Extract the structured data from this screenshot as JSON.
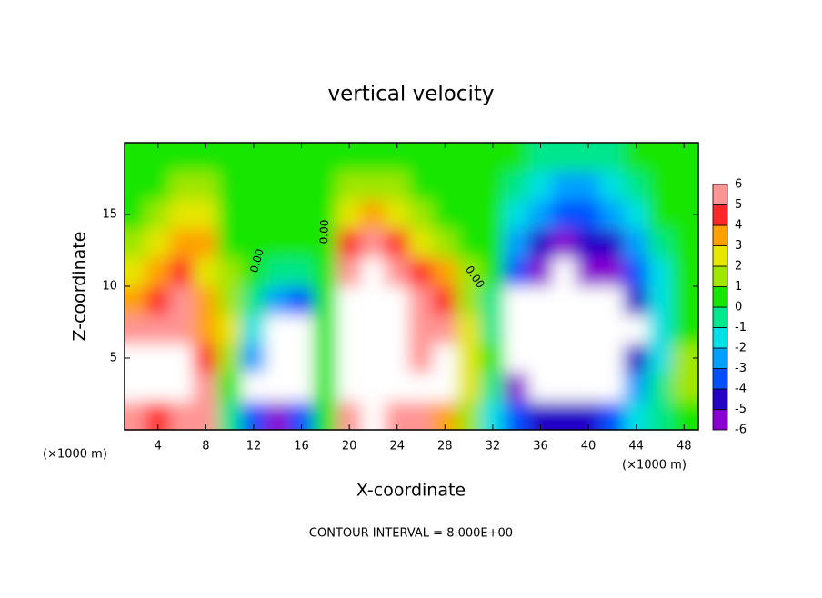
{
  "chart_data": {
    "type": "contour",
    "title": "vertical velocity",
    "x_label": "X-coordinate",
    "y_label": "Z-coordinate",
    "x_unit_label": "(×1000 m)",
    "y_unit_label": "(×1000 m)",
    "footer": "CONTOUR INTERVAL = 8.000E+00",
    "contour_labels": [
      "0.00",
      "0.00",
      "0.00"
    ],
    "xlim": [
      1.2,
      49.2
    ],
    "ylim": [
      0,
      20
    ],
    "xticks": [
      4,
      8,
      12,
      16,
      20,
      24,
      28,
      32,
      36,
      40,
      44,
      48
    ],
    "yticks": [
      5,
      10,
      15
    ],
    "x": [
      2,
      4,
      6,
      8,
      10,
      12,
      14,
      16,
      18,
      20,
      22,
      24,
      26,
      28,
      30,
      32,
      34,
      36,
      38,
      40,
      42,
      44,
      46,
      48
    ],
    "y": [
      1,
      3,
      5,
      7,
      9,
      11,
      13,
      15,
      17,
      19
    ],
    "z": [
      [
        5,
        8,
        8,
        5,
        3,
        2,
        1,
        0,
        0,
        0
      ],
      [
        4,
        8,
        7,
        5,
        4,
        3,
        2,
        1,
        0,
        0
      ],
      [
        5,
        7,
        8,
        6,
        5,
        4,
        3,
        2,
        1,
        0
      ],
      [
        5,
        5,
        4,
        3,
        3,
        2,
        3,
        2,
        1,
        0
      ],
      [
        -1,
        0,
        1,
        2,
        1,
        1,
        0,
        0,
        0,
        0
      ],
      [
        -4,
        -7,
        -3,
        -2,
        -1,
        0,
        0,
        0,
        0,
        0
      ],
      [
        -6,
        -8,
        -8,
        -7,
        -3,
        -1,
        0,
        0,
        0,
        0
      ],
      [
        -4,
        -7,
        -8,
        -8,
        -4,
        -1,
        0,
        0,
        0,
        0
      ],
      [
        0,
        0,
        0,
        0,
        0,
        0,
        0,
        0,
        0,
        0
      ],
      [
        5,
        8,
        8,
        8,
        8,
        6,
        4,
        2,
        1,
        0
      ],
      [
        7,
        10,
        12,
        14,
        13,
        10,
        6,
        3,
        1,
        0
      ],
      [
        6,
        8,
        8,
        8,
        8,
        6,
        4,
        2,
        1,
        0
      ],
      [
        5,
        7,
        6,
        5,
        5,
        4,
        2,
        1,
        0,
        0
      ],
      [
        3,
        7,
        7,
        5,
        4,
        3,
        1,
        0,
        0,
        0
      ],
      [
        1,
        2,
        2,
        2,
        1,
        1,
        0,
        0,
        0,
        0
      ],
      [
        -2,
        -1,
        0,
        -1,
        -1,
        0,
        0,
        0,
        0,
        0
      ],
      [
        -4,
        -6,
        -7,
        -7,
        -7,
        -4,
        -3,
        -2,
        -1,
        0
      ],
      [
        -5,
        -8,
        -9,
        -10,
        -8,
        -6,
        -5,
        -3,
        -2,
        -1
      ],
      [
        -5,
        -9,
        -10,
        -12,
        -10,
        -7,
        -6,
        -4,
        -3,
        -1
      ],
      [
        -5,
        -10,
        -10,
        -10,
        -8,
        -6,
        -5,
        -4,
        -3,
        -1
      ],
      [
        -4,
        -7,
        -8,
        -9,
        -8,
        -6,
        -5,
        -3,
        -2,
        -1
      ],
      [
        -2,
        -3,
        -5,
        -7,
        -5,
        -4,
        -3,
        -2,
        -1,
        0
      ],
      [
        -1,
        -1,
        -2,
        -2,
        -2,
        -2,
        -1,
        0,
        0,
        0
      ],
      [
        0,
        1,
        1,
        0,
        0,
        0,
        0,
        0,
        0,
        0
      ]
    ],
    "colorbar": {
      "ticks": [
        -6,
        -5,
        -4,
        -3,
        -2,
        -1,
        0,
        1,
        2,
        3,
        4,
        5,
        6
      ],
      "colors": [
        "#8a00d2",
        "#2400c8",
        "#0050ff",
        "#00a0ff",
        "#00e0e6",
        "#00e68c",
        "#14e600",
        "#a0e600",
        "#e6e600",
        "#ffa000",
        "#ff2828",
        "#ff9494"
      ],
      "out_of_range_color": "#ffffff"
    }
  }
}
